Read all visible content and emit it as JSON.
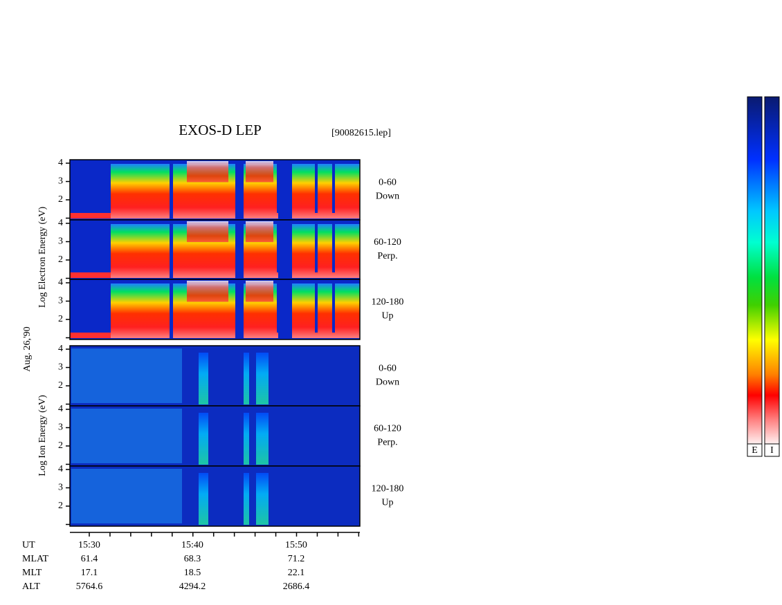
{
  "header": {
    "title": "EXOS-D LEP",
    "file": "[90082615.lep]"
  },
  "electron": {
    "axis_label": "Log Electron Energy (eV)",
    "panels": [
      {
        "angle": "0-60",
        "direction": "Down"
      },
      {
        "angle": "60-120",
        "direction": "Perp."
      },
      {
        "angle": "120-180",
        "direction": "Up"
      }
    ]
  },
  "ion": {
    "axis_label": "Log Ion Energy (eV)",
    "panels": [
      {
        "angle": "0-60",
        "direction": "Down"
      },
      {
        "angle": "60-120",
        "direction": "Perp."
      },
      {
        "angle": "120-180",
        "direction": "Up"
      }
    ]
  },
  "y_ticks": [
    "4",
    "3",
    "2"
  ],
  "date": "Aug. 26,'90",
  "x_axis": {
    "rows": [
      {
        "label": "UT",
        "values": [
          "15:30",
          "15:40",
          "15:50"
        ]
      },
      {
        "label": "MLAT",
        "values": [
          "61.4",
          "68.3",
          "71.2"
        ]
      },
      {
        "label": "MLT",
        "values": [
          "17.1",
          "18.5",
          "22.1"
        ]
      },
      {
        "label": "ALT",
        "values": [
          "5764.6",
          "4294.2",
          "2686.4"
        ]
      }
    ]
  },
  "colorbars": [
    "E",
    "I"
  ]
}
